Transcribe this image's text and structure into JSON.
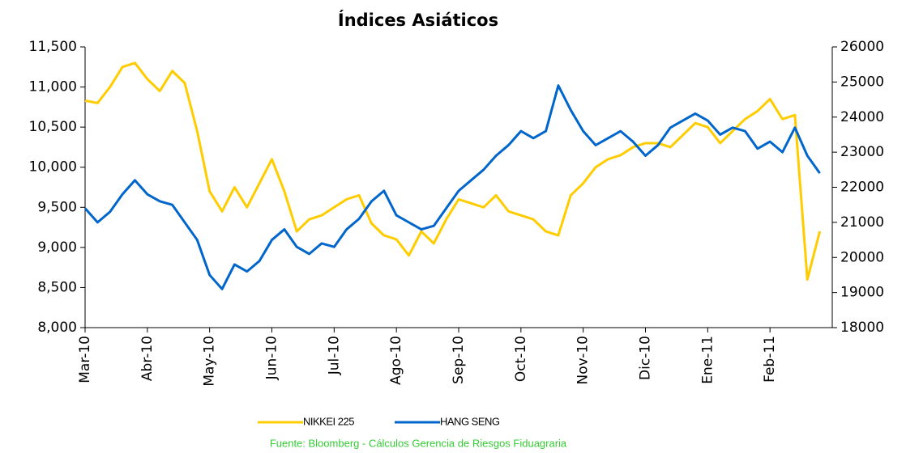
{
  "chart_data": {
    "type": "line",
    "title": "Índices Asiáticos",
    "categories": [
      "Mar-10",
      null,
      null,
      null,
      null,
      "Abr-10",
      null,
      null,
      null,
      null,
      "May-10",
      null,
      null,
      null,
      null,
      "Jun-10",
      null,
      null,
      null,
      null,
      "Jul-10",
      null,
      null,
      null,
      null,
      "Ago-10",
      null,
      null,
      null,
      null,
      "Sep-10",
      null,
      null,
      null,
      null,
      "Oct-10",
      null,
      null,
      null,
      null,
      "Nov-10",
      null,
      null,
      null,
      null,
      "Dic-10",
      null,
      null,
      null,
      null,
      "Ene-11",
      null,
      null,
      null,
      null,
      "Feb-11",
      null,
      null,
      null,
      null
    ],
    "series": [
      {
        "name": "NIKKEI 225",
        "color": "#ffcc00",
        "axis": "y",
        "values": [
          10830,
          10800,
          11000,
          11250,
          11300,
          11100,
          10950,
          11200,
          11050,
          10450,
          9700,
          9450,
          9750,
          9500,
          9800,
          10100,
          9700,
          9200,
          9350,
          9400,
          9500,
          9600,
          9650,
          9300,
          9150,
          9100,
          8900,
          9200,
          9050,
          9350,
          9600,
          9550,
          9500,
          9650,
          9450,
          9400,
          9350,
          9200,
          9150,
          9650,
          9800,
          10000,
          10100,
          10150,
          10250,
          10300,
          10300,
          10250,
          10400,
          10550,
          10500,
          10300,
          10450,
          10600,
          10700,
          10850,
          10600,
          10650,
          8600,
          9200
        ]
      },
      {
        "name": "HANG SENG",
        "color": "#0066cc",
        "axis": "y2",
        "values": [
          21400,
          21000,
          21300,
          21800,
          22200,
          21800,
          21600,
          21500,
          21000,
          20500,
          19500,
          19100,
          19800,
          19600,
          19900,
          20500,
          20800,
          20300,
          20100,
          20400,
          20300,
          20800,
          21100,
          21600,
          21900,
          21200,
          21000,
          20800,
          20900,
          21400,
          21900,
          22200,
          22500,
          22900,
          23200,
          23600,
          23400,
          23600,
          24900,
          24200,
          23600,
          23200,
          23400,
          23600,
          23300,
          22900,
          23200,
          23700,
          23900,
          24100,
          23900,
          23500,
          23700,
          23600,
          23100,
          23300,
          23000,
          23700,
          22900,
          22400
        ]
      }
    ],
    "ylim": [
      8000,
      11500
    ],
    "yticks": [
      {
        "value": 8000,
        "label": "8,000"
      },
      {
        "value": 8500,
        "label": "8,500"
      },
      {
        "value": 9000,
        "label": "9,000"
      },
      {
        "value": 9500,
        "label": "9,500"
      },
      {
        "value": 10000,
        "label": "10,000"
      },
      {
        "value": 10500,
        "label": "10,500"
      },
      {
        "value": 11000,
        "label": "11,000"
      },
      {
        "value": 11500,
        "label": "11,500"
      }
    ],
    "y2lim": [
      18000,
      26000
    ],
    "y2ticks": [
      18000,
      19000,
      20000,
      21000,
      22000,
      23000,
      24000,
      25000,
      26000
    ],
    "grid": false,
    "legend": "bottom",
    "source": "Fuente: Bloomberg - Cálculos Gerencia de Riesgos Fiduagraria"
  }
}
